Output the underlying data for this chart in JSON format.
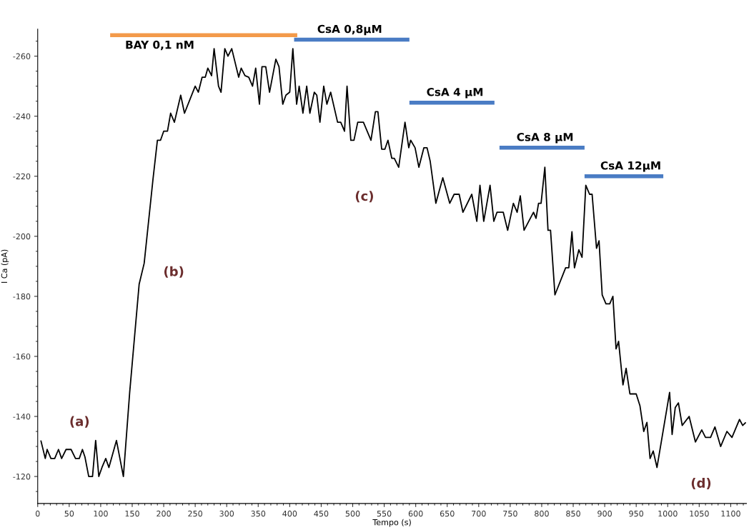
{
  "chart_data": {
    "type": "line",
    "xlabel": "Tempo (s)",
    "ylabel": "I Ca (pA)",
    "xlim": [
      0,
      1125
    ],
    "ylim": [
      -111,
      -269
    ],
    "xticks": [
      0,
      50,
      100,
      150,
      200,
      250,
      300,
      350,
      400,
      450,
      500,
      550,
      600,
      650,
      700,
      750,
      800,
      850,
      900,
      950,
      1000,
      1050,
      1100
    ],
    "yticks": [
      -260,
      -240,
      -220,
      -200,
      -180,
      -160,
      -140,
      -120
    ],
    "grid": false,
    "legend": false,
    "series": [
      {
        "color": "#000000",
        "x": [
          5,
          12,
          15,
          21,
          27,
          33,
          38,
          45,
          53,
          60,
          66,
          71,
          75,
          81,
          87,
          92,
          97,
          102,
          108,
          113,
          125,
          136,
          146,
          161,
          169,
          183,
          190,
          195,
          200,
          206,
          211,
          217,
          227,
          233,
          250,
          255,
          261,
          266,
          270,
          276,
          280,
          287,
          291,
          297,
          302,
          308,
          319,
          323,
          329,
          335,
          341,
          346,
          352,
          356,
          362,
          368,
          378,
          383,
          389,
          394,
          400,
          405,
          411,
          415,
          421,
          427,
          432,
          439,
          443,
          448,
          454,
          459,
          465,
          476,
          481,
          487,
          491,
          497,
          502,
          508,
          517,
          529,
          536,
          540,
          546,
          551,
          556,
          562,
          566,
          573,
          583,
          589,
          592,
          599,
          605,
          613,
          618,
          623,
          632,
          643,
          654,
          661,
          669,
          675,
          689,
          697,
          702,
          708,
          718,
          724,
          729,
          739,
          746,
          755,
          761,
          766,
          772,
          787,
          791,
          795,
          799,
          805,
          810,
          814,
          821,
          838,
          843,
          848,
          852,
          859,
          864,
          870,
          876,
          880,
          887,
          891,
          896,
          902,
          908,
          913,
          918,
          922,
          929,
          934,
          940,
          950,
          956,
          962,
          967,
          972,
          977,
          983,
          1003,
          1007,
          1012,
          1017,
          1023,
          1034,
          1044,
          1054,
          1060,
          1068,
          1075,
          1084,
          1094,
          1102,
          1114,
          1119,
          1124
        ],
        "values": [
          -132,
          -126,
          -129,
          -126,
          -126,
          -129,
          -126,
          -129,
          -129,
          -126,
          -126,
          -129,
          -126.5,
          -120,
          -120,
          -132,
          -120,
          -123,
          -126,
          -123,
          -132,
          -120,
          -148,
          -184,
          -191,
          -219,
          -232,
          -232,
          -235,
          -235,
          -241,
          -238,
          -247,
          -241,
          -250,
          -248,
          -253,
          -253,
          -256,
          -253.5,
          -262.5,
          -250,
          -248,
          -262.5,
          -260,
          -262.5,
          -253,
          -256,
          -253.5,
          -253,
          -250,
          -256,
          -244,
          -256.5,
          -256.5,
          -248,
          -259,
          -256.5,
          -244,
          -247,
          -248,
          -262.5,
          -244,
          -250,
          -241,
          -250,
          -241,
          -248,
          -247,
          -238,
          -250,
          -244,
          -248,
          -238,
          -238,
          -235,
          -250,
          -232,
          -232,
          -238,
          -238,
          -232,
          -241.5,
          -241.5,
          -229,
          -229,
          -232,
          -226,
          -226,
          -223,
          -238,
          -229.5,
          -232,
          -229.5,
          -223,
          -229.5,
          -229.5,
          -225,
          -211,
          -219.5,
          -211,
          -214,
          -214,
          -208,
          -214,
          -205,
          -217,
          -205,
          -217,
          -205,
          -208,
          -208,
          -202,
          -211,
          -208,
          -213.5,
          -202,
          -208,
          -206,
          -211,
          -211,
          -223,
          -202,
          -202,
          -180.5,
          -189.5,
          -189.5,
          -201.5,
          -189.5,
          -195.5,
          -193,
          -217,
          -214,
          -214,
          -196,
          -198.5,
          -180.5,
          -177.5,
          -177.5,
          -180,
          -162.5,
          -165,
          -150.5,
          -156,
          -147.5,
          -147.5,
          -143.5,
          -135,
          -138,
          -126,
          -128.5,
          -123,
          -148,
          -134,
          -143,
          -144.5,
          -137,
          -140,
          -131.5,
          -135.5,
          -133,
          -133,
          -136.5,
          -130,
          -135,
          -133,
          -139,
          -137,
          -138
        ]
      },
      {
        "name": "BAY 0,1 nM",
        "color": "#f39a4a",
        "x": [
          115,
          412
        ],
        "values": [
          -267,
          -267
        ]
      },
      {
        "name": "CsA 0,8μM",
        "color": "#4a7cc4",
        "x": [
          407,
          590
        ],
        "values": [
          -265.5,
          -265.5
        ]
      },
      {
        "name": "CsA 4 μM",
        "color": "#4a7cc4",
        "x": [
          590,
          725
        ],
        "values": [
          -244.5,
          -244.5
        ]
      },
      {
        "name": "CsA 8 μM",
        "color": "#4a7cc4",
        "x": [
          733,
          868
        ],
        "values": [
          -229.5,
          -229.5
        ]
      },
      {
        "name": "CsA 12μM",
        "color": "#4a7cc4",
        "x": [
          868,
          993
        ],
        "values": [
          -220,
          -220
        ]
      }
    ],
    "annotations": [
      "(a)",
      "(b)",
      "(c)",
      "(d)"
    ]
  }
}
